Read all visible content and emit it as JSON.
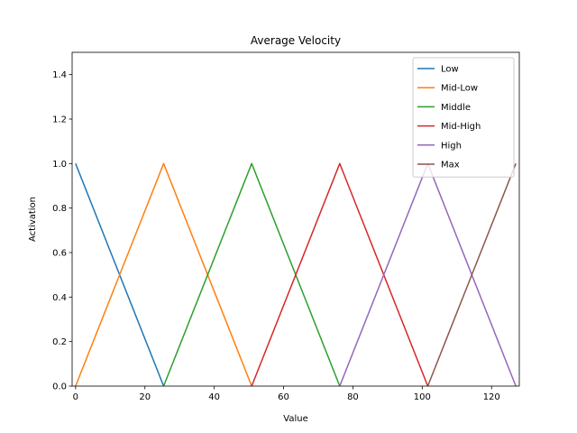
{
  "chart_data": {
    "type": "line",
    "title": "Average Velocity",
    "xlabel": "Value",
    "ylabel": "Activation",
    "xlim": [
      -1,
      128
    ],
    "ylim": [
      0,
      1.5
    ],
    "xticks": [
      0,
      20,
      40,
      60,
      80,
      100,
      120
    ],
    "yticks": [
      0.0,
      0.2,
      0.4,
      0.6,
      0.8,
      1.0,
      1.2,
      1.4
    ],
    "xtick_labels": [
      "0",
      "20",
      "40",
      "60",
      "80",
      "100",
      "120"
    ],
    "ytick_labels": [
      "0.0",
      "0.2",
      "0.4",
      "0.6",
      "0.8",
      "1.0",
      "1.2",
      "1.4"
    ],
    "grid": false,
    "legend_position": "top-right",
    "series": [
      {
        "name": "Low",
        "color": "#1f77b4",
        "x": [
          0,
          25.4
        ],
        "y": [
          1,
          0
        ]
      },
      {
        "name": "Mid-Low",
        "color": "#ff7f0e",
        "x": [
          0,
          25.4,
          50.8
        ],
        "y": [
          0,
          1,
          0
        ]
      },
      {
        "name": "Middle",
        "color": "#2ca02c",
        "x": [
          25.4,
          50.8,
          76.2
        ],
        "y": [
          0,
          1,
          0
        ]
      },
      {
        "name": "Mid-High",
        "color": "#d62728",
        "x": [
          50.8,
          76.2,
          101.6
        ],
        "y": [
          0,
          1,
          0
        ]
      },
      {
        "name": "High",
        "color": "#9467bd",
        "x": [
          76.2,
          101.6,
          127
        ],
        "y": [
          0,
          1,
          0
        ]
      },
      {
        "name": "Max",
        "color": "#8c564b",
        "x": [
          101.6,
          127
        ],
        "y": [
          0,
          1
        ]
      }
    ]
  }
}
